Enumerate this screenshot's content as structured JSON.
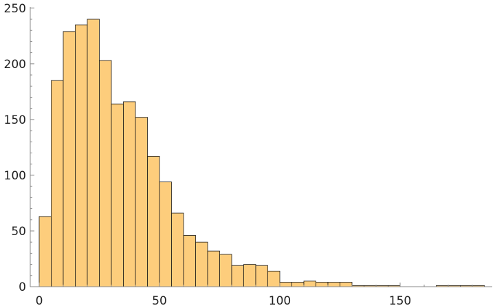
{
  "chart_data": {
    "type": "bar",
    "subtype": "histogram",
    "title": "",
    "xlabel": "",
    "ylabel": "",
    "bin_width": 5,
    "bins": [
      {
        "start": 0,
        "end": 5,
        "count": 63
      },
      {
        "start": 5,
        "end": 10,
        "count": 185
      },
      {
        "start": 10,
        "end": 15,
        "count": 229
      },
      {
        "start": 15,
        "end": 20,
        "count": 235
      },
      {
        "start": 20,
        "end": 25,
        "count": 240
      },
      {
        "start": 25,
        "end": 30,
        "count": 203
      },
      {
        "start": 30,
        "end": 35,
        "count": 164
      },
      {
        "start": 35,
        "end": 40,
        "count": 166
      },
      {
        "start": 40,
        "end": 45,
        "count": 152
      },
      {
        "start": 45,
        "end": 50,
        "count": 117
      },
      {
        "start": 50,
        "end": 55,
        "count": 94
      },
      {
        "start": 55,
        "end": 60,
        "count": 66
      },
      {
        "start": 60,
        "end": 65,
        "count": 46
      },
      {
        "start": 65,
        "end": 70,
        "count": 40
      },
      {
        "start": 70,
        "end": 75,
        "count": 32
      },
      {
        "start": 75,
        "end": 80,
        "count": 29
      },
      {
        "start": 80,
        "end": 85,
        "count": 19
      },
      {
        "start": 85,
        "end": 90,
        "count": 20
      },
      {
        "start": 90,
        "end": 95,
        "count": 19
      },
      {
        "start": 95,
        "end": 100,
        "count": 14
      },
      {
        "start": 100,
        "end": 105,
        "count": 4
      },
      {
        "start": 105,
        "end": 110,
        "count": 4
      },
      {
        "start": 110,
        "end": 115,
        "count": 5
      },
      {
        "start": 115,
        "end": 120,
        "count": 4
      },
      {
        "start": 120,
        "end": 125,
        "count": 4
      },
      {
        "start": 125,
        "end": 130,
        "count": 4
      },
      {
        "start": 130,
        "end": 135,
        "count": 1
      },
      {
        "start": 135,
        "end": 140,
        "count": 1
      },
      {
        "start": 140,
        "end": 145,
        "count": 1
      },
      {
        "start": 145,
        "end": 150,
        "count": 1
      },
      {
        "start": 150,
        "end": 155,
        "count": 0
      },
      {
        "start": 155,
        "end": 160,
        "count": 0
      },
      {
        "start": 160,
        "end": 165,
        "count": 0
      },
      {
        "start": 165,
        "end": 170,
        "count": 1
      },
      {
        "start": 170,
        "end": 175,
        "count": 1
      },
      {
        "start": 175,
        "end": 180,
        "count": 1
      },
      {
        "start": 180,
        "end": 185,
        "count": 1
      }
    ],
    "xlim": [
      -3,
      190
    ],
    "ylim": [
      0,
      255
    ],
    "x_ticks": [
      0,
      50,
      100,
      150
    ],
    "x_tick_labels": [
      "0",
      "50",
      "100",
      "150"
    ],
    "y_ticks": [
      0,
      50,
      100,
      150,
      200,
      250
    ],
    "y_tick_labels": [
      "0",
      "50",
      "100",
      "150",
      "200",
      "250"
    ],
    "grid": false,
    "legend": "none",
    "colors": {
      "bar_fill": "#fdcd7c",
      "bar_stroke": "#1a1a1a",
      "axis": "#888888",
      "text": "#222222"
    }
  }
}
